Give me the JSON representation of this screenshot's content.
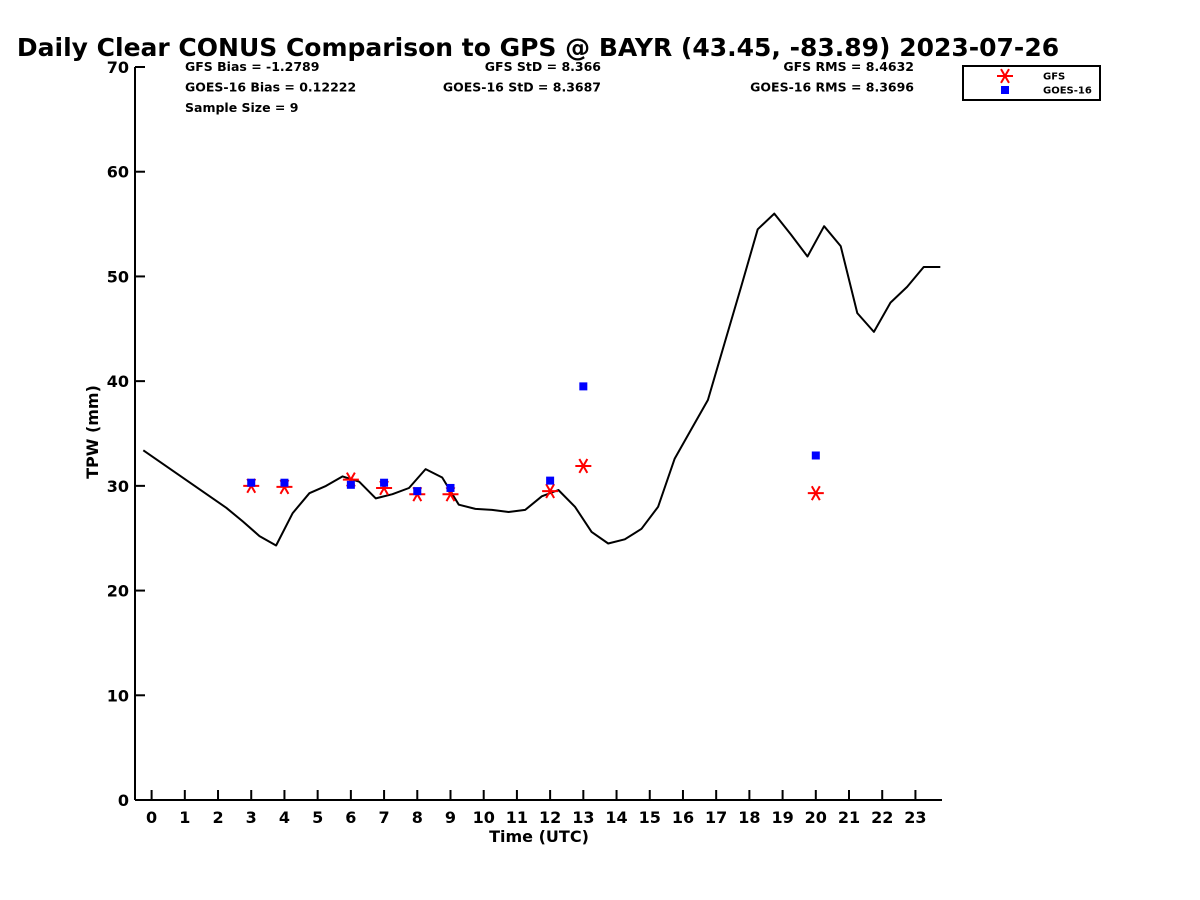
{
  "chart_data": {
    "type": "line",
    "title": "Daily Clear CONUS Comparison to GPS @ BAYR (43.45, -83.89) 2023-07-26",
    "xlabel": "Time (UTC)",
    "ylabel": "TPW (mm)",
    "xlim": [
      -0.5,
      23.8
    ],
    "ylim": [
      0,
      70
    ],
    "x_ticks": [
      0,
      1,
      2,
      3,
      4,
      5,
      6,
      7,
      8,
      9,
      10,
      11,
      12,
      13,
      14,
      15,
      16,
      17,
      18,
      19,
      20,
      21,
      22,
      23
    ],
    "y_ticks": [
      0,
      10,
      20,
      30,
      40,
      50,
      60,
      70
    ],
    "grid": false,
    "legend_position": "top-right, outside plot",
    "stats": [
      {
        "label": "GFS Bias = -1.2789",
        "column": "left",
        "row": 0
      },
      {
        "label": "GOES-16 Bias = 0.12222",
        "column": "left",
        "row": 1
      },
      {
        "label": "Sample Size = 9",
        "column": "left",
        "row": 2
      },
      {
        "label": "GFS StD = 8.366",
        "column": "center",
        "row": 0
      },
      {
        "label": "GOES-16 StD = 8.3687",
        "column": "center",
        "row": 1
      },
      {
        "label": "GFS RMS = 8.4632",
        "column": "right",
        "row": 0
      },
      {
        "label": "GOES-16 RMS = 8.3696",
        "column": "right",
        "row": 1
      }
    ],
    "series": [
      {
        "kind": "line",
        "color": "#000000",
        "points": [
          [
            -0.25,
            33.4
          ],
          [
            0.25,
            32.3
          ],
          [
            0.75,
            31.2
          ],
          [
            1.25,
            30.1
          ],
          [
            1.75,
            29.0
          ],
          [
            2.25,
            27.9
          ],
          [
            2.75,
            26.6
          ],
          [
            3.25,
            25.2
          ],
          [
            3.75,
            24.3
          ],
          [
            4.25,
            27.4
          ],
          [
            4.75,
            29.3
          ],
          [
            5.25,
            30.0
          ],
          [
            5.75,
            30.9
          ],
          [
            6.25,
            30.4
          ],
          [
            6.75,
            28.8
          ],
          [
            7.25,
            29.2
          ],
          [
            7.75,
            29.8
          ],
          [
            8.25,
            31.6
          ],
          [
            8.75,
            30.8
          ],
          [
            9.25,
            28.2
          ],
          [
            9.75,
            27.8
          ],
          [
            10.25,
            27.7
          ],
          [
            10.75,
            27.5
          ],
          [
            11.25,
            27.7
          ],
          [
            11.75,
            29.0
          ],
          [
            12.25,
            29.6
          ],
          [
            12.75,
            28.0
          ],
          [
            13.25,
            25.6
          ],
          [
            13.75,
            24.5
          ],
          [
            14.25,
            24.9
          ],
          [
            14.75,
            25.9
          ],
          [
            15.25,
            28.0
          ],
          [
            15.75,
            32.6
          ],
          [
            16.25,
            35.4
          ],
          [
            16.75,
            38.2
          ],
          [
            17.25,
            43.6
          ],
          [
            17.75,
            49.0
          ],
          [
            18.25,
            54.5
          ],
          [
            18.75,
            56.0
          ],
          [
            19.25,
            54.0
          ],
          [
            19.75,
            51.9
          ],
          [
            20.25,
            54.8
          ],
          [
            20.75,
            52.9
          ],
          [
            21.25,
            46.5
          ],
          [
            21.75,
            44.7
          ],
          [
            22.25,
            47.5
          ],
          [
            22.75,
            49.0
          ],
          [
            23.25,
            50.9
          ],
          [
            23.75,
            50.9
          ]
        ]
      },
      {
        "name": "GFS",
        "kind": "scatter",
        "marker": "asterisk",
        "color": "#ff0000",
        "points": [
          [
            3,
            30.0
          ],
          [
            4,
            29.9
          ],
          [
            6,
            30.6
          ],
          [
            7,
            29.8
          ],
          [
            8,
            29.2
          ],
          [
            9,
            29.2
          ],
          [
            12,
            29.5
          ],
          [
            13,
            31.9
          ],
          [
            20,
            29.3
          ]
        ]
      },
      {
        "name": "GOES-16",
        "kind": "scatter",
        "marker": "square",
        "color": "#0000ff",
        "points": [
          [
            3,
            30.3
          ],
          [
            4,
            30.3
          ],
          [
            6,
            30.1
          ],
          [
            7,
            30.3
          ],
          [
            8,
            29.5
          ],
          [
            9,
            29.8
          ],
          [
            12,
            30.5
          ],
          [
            13,
            39.5
          ],
          [
            20,
            32.9
          ]
        ]
      }
    ]
  }
}
